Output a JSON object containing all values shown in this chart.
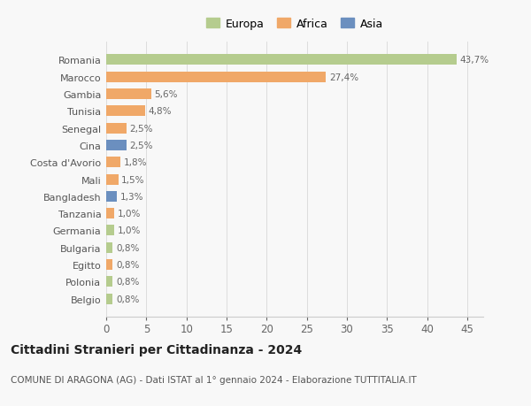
{
  "countries": [
    "Belgio",
    "Polonia",
    "Egitto",
    "Bulgaria",
    "Germania",
    "Tanzania",
    "Bangladesh",
    "Mali",
    "Costa d'Avorio",
    "Cina",
    "Senegal",
    "Tunisia",
    "Gambia",
    "Marocco",
    "Romania"
  ],
  "values": [
    0.8,
    0.8,
    0.8,
    0.8,
    1.0,
    1.0,
    1.3,
    1.5,
    1.8,
    2.5,
    2.5,
    4.8,
    5.6,
    27.4,
    43.7
  ],
  "labels": [
    "0,8%",
    "0,8%",
    "0,8%",
    "0,8%",
    "1,0%",
    "1,0%",
    "1,3%",
    "1,5%",
    "1,8%",
    "2,5%",
    "2,5%",
    "4,8%",
    "5,6%",
    "27,4%",
    "43,7%"
  ],
  "continents": [
    "Europa",
    "Europa",
    "Africa",
    "Europa",
    "Europa",
    "Africa",
    "Asia",
    "Africa",
    "Africa",
    "Asia",
    "Africa",
    "Africa",
    "Africa",
    "Africa",
    "Europa"
  ],
  "colors": {
    "Europa": "#b5cc8e",
    "Africa": "#f0a868",
    "Asia": "#6b8fbf"
  },
  "legend_order": [
    "Europa",
    "Africa",
    "Asia"
  ],
  "xlim": [
    0,
    47
  ],
  "xticks": [
    0,
    5,
    10,
    15,
    20,
    25,
    30,
    35,
    40,
    45
  ],
  "title": "Cittadini Stranieri per Cittadinanza - 2024",
  "subtitle": "COMUNE DI ARAGONA (AG) - Dati ISTAT al 1° gennaio 2024 - Elaborazione TUTTITALIA.IT",
  "bg_color": "#f8f8f8",
  "bar_label_fontsize": 7.5,
  "ytick_fontsize": 8,
  "xtick_fontsize": 8.5,
  "title_fontsize": 10,
  "subtitle_fontsize": 7.5,
  "legend_fontsize": 9
}
